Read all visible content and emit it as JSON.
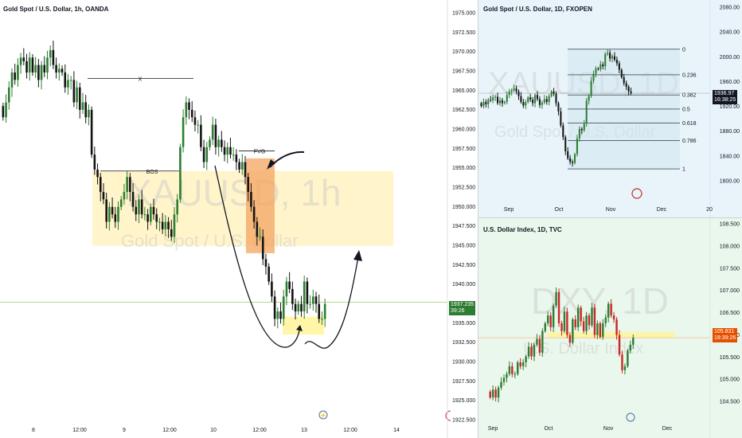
{
  "colors": {
    "up": "#2e7d32",
    "down": "#141414",
    "red": "#c62828",
    "orange_up": "#e65100",
    "zone": "#fff3c4",
    "fvg": "#f4a460",
    "fib_fill": "#cfe5ef"
  },
  "main": {
    "title": "Gold Spot / U.S. Dollar, 1h, OANDA",
    "watermark_symbol": "XAUUSD, 1h",
    "watermark_name": "Gold Spot / U.S. Dollar",
    "labels": {
      "x": "X",
      "bos": "BOS",
      "fvg": "FVG"
    },
    "price_tag": {
      "price": "1937.235",
      "time": "39:26"
    },
    "y_ticks": [
      "1975.000",
      "1972.500",
      "1970.000",
      "1967.500",
      "1965.000",
      "1962.500",
      "1960.000",
      "1957.500",
      "1955.000",
      "1952.500",
      "1950.000",
      "1947.500",
      "1945.000",
      "1942.500",
      "1940.000",
      "1937.500",
      "1935.000",
      "1932.500",
      "1930.000",
      "1927.500",
      "1925.000",
      "1922.500"
    ],
    "x_ticks": [
      "8",
      "12:00",
      "9",
      "12:00",
      "10",
      "12:00",
      "13",
      "12:00",
      "14"
    ]
  },
  "gold": {
    "title": "Gold Spot / U.S. Dollar, 1D, FXOPEN",
    "watermark_symbol": "XAUUSD, 1D",
    "watermark_name": "Gold Spot / U.S. Dollar",
    "price_tag": {
      "price": "1936.97",
      "time": "16:38:25"
    },
    "fib_levels": [
      "1",
      "0.786",
      "0.618",
      "0.5",
      "0.382",
      "0.236",
      "0"
    ],
    "y_ticks": [
      "2080.00",
      "2040.00",
      "2000.00",
      "1960.00",
      "1920.00",
      "1880.00",
      "1840.00",
      "1800.00"
    ],
    "x_ticks": [
      "Sep",
      "Oct",
      "Nov",
      "Dec",
      "20"
    ]
  },
  "dxy": {
    "title": "U.S. Dollar Index, 1D, TVC",
    "watermark_symbol": "DXY, 1D",
    "watermark_name": "U.S. Dollar Index",
    "price_tag": {
      "price": "105.831",
      "time": "18:39:26"
    },
    "y_ticks": [
      "108.500",
      "108.000",
      "107.500",
      "107.000",
      "106.500",
      "106.000",
      "105.500",
      "105.000",
      "104.500"
    ],
    "x_ticks": [
      "Sep",
      "Oct",
      "Nov",
      "Dec"
    ]
  },
  "chart_data": [
    {
      "type": "candlestick",
      "title": "Gold Spot / U.S. Dollar, 1h, OANDA",
      "ylim": [
        1921.5,
        1976.0
      ],
      "x_ticks": [
        "8",
        "12:00",
        "9",
        "12:00",
        "10",
        "12:00",
        "13",
        "12:00",
        "14"
      ],
      "last_price": 1937.235,
      "closes": [
        1962,
        1964,
        1966,
        1968,
        1967,
        1969,
        1970,
        1969.5,
        1968,
        1970,
        1968,
        1969,
        1967,
        1969,
        1968,
        1970,
        1971,
        1969,
        1968,
        1968.5,
        1968,
        1966,
        1967,
        1967,
        1964,
        1966,
        1963,
        1964,
        1962,
        1963,
        1957,
        1955,
        1954,
        1952,
        1951,
        1948,
        1950,
        1949,
        1948,
        1950,
        1951,
        1952,
        1954,
        1952,
        1950,
        1949,
        1951,
        1949,
        1949,
        1948,
        1950,
        1949,
        1948,
        1948,
        1947,
        1948,
        1947,
        1946,
        1949,
        1951,
        1958,
        1962,
        1964,
        1963,
        1962,
        1961,
        1961,
        1958,
        1956,
        1958,
        1959,
        1961,
        1958,
        1959,
        1958,
        1957,
        1958,
        1957,
        1957,
        1956,
        1955,
        1956,
        1954,
        1952,
        1950,
        1948,
        1946,
        1946,
        1943,
        1942,
        1940,
        1938,
        1935,
        1936,
        1935,
        1938,
        1940,
        1939,
        1937,
        1936,
        1937,
        1936,
        1940,
        1937,
        1937,
        1938,
        1937,
        1935,
        1935,
        1937
      ]
    },
    {
      "type": "candlestick",
      "title": "Gold Spot / U.S. Dollar, 1D, FXOPEN",
      "ylim": [
        1785,
        2085
      ],
      "x_ticks": [
        "Sep",
        "Oct",
        "Nov",
        "Dec",
        "20"
      ],
      "last_price": 1936.97,
      "fib_levels": [
        1,
        0.786,
        0.618,
        0.5,
        0.382,
        0.236,
        0
      ],
      "closes": [
        1915,
        1922,
        1918,
        1926,
        1925,
        1930,
        1931,
        1920,
        1925,
        1920,
        1922,
        1934,
        1940,
        1942,
        1945,
        1940,
        1932,
        1922,
        1916,
        1922,
        1930,
        1926,
        1920,
        1934,
        1927,
        1917,
        1921,
        1927,
        1922,
        1932,
        1940,
        1936,
        1920,
        1906,
        1882,
        1862,
        1838,
        1826,
        1820,
        1818,
        1833,
        1860,
        1876,
        1874,
        1885,
        1924,
        1932,
        1958,
        1970,
        1979,
        1978,
        1986,
        1983,
        2004,
        2006,
        1996,
        2000,
        1994,
        1988,
        1977,
        1964,
        1954,
        1948,
        1940,
        1937
      ]
    },
    {
      "type": "candlestick",
      "title": "U.S. Dollar Index, 1D, TVC",
      "ylim": [
        104.2,
        108.75
      ],
      "x_ticks": [
        "Sep",
        "Oct",
        "Nov",
        "Dec"
      ],
      "last_price": 105.831,
      "closes": [
        104.3,
        104.5,
        104.3,
        104.55,
        104.7,
        104.8,
        104.9,
        105.1,
        104.9,
        104.9,
        105.2,
        105.1,
        105.2,
        105.35,
        105.6,
        105.35,
        105.65,
        105.8,
        105.45,
        106.0,
        106.2,
        106.4,
        106.1,
        106.65,
        107.0,
        106.2,
        106.0,
        106.5,
        105.9,
        105.7,
        106.3,
        106.1,
        106.6,
        106.25,
        106.0,
        106.4,
        106.15,
        106.6,
        105.9,
        106.2,
        105.85,
        106.2,
        106.35,
        106.7,
        106.4,
        106.3,
        105.9,
        105.4,
        105.0,
        105.1,
        105.5,
        105.65,
        105.831
      ]
    }
  ]
}
